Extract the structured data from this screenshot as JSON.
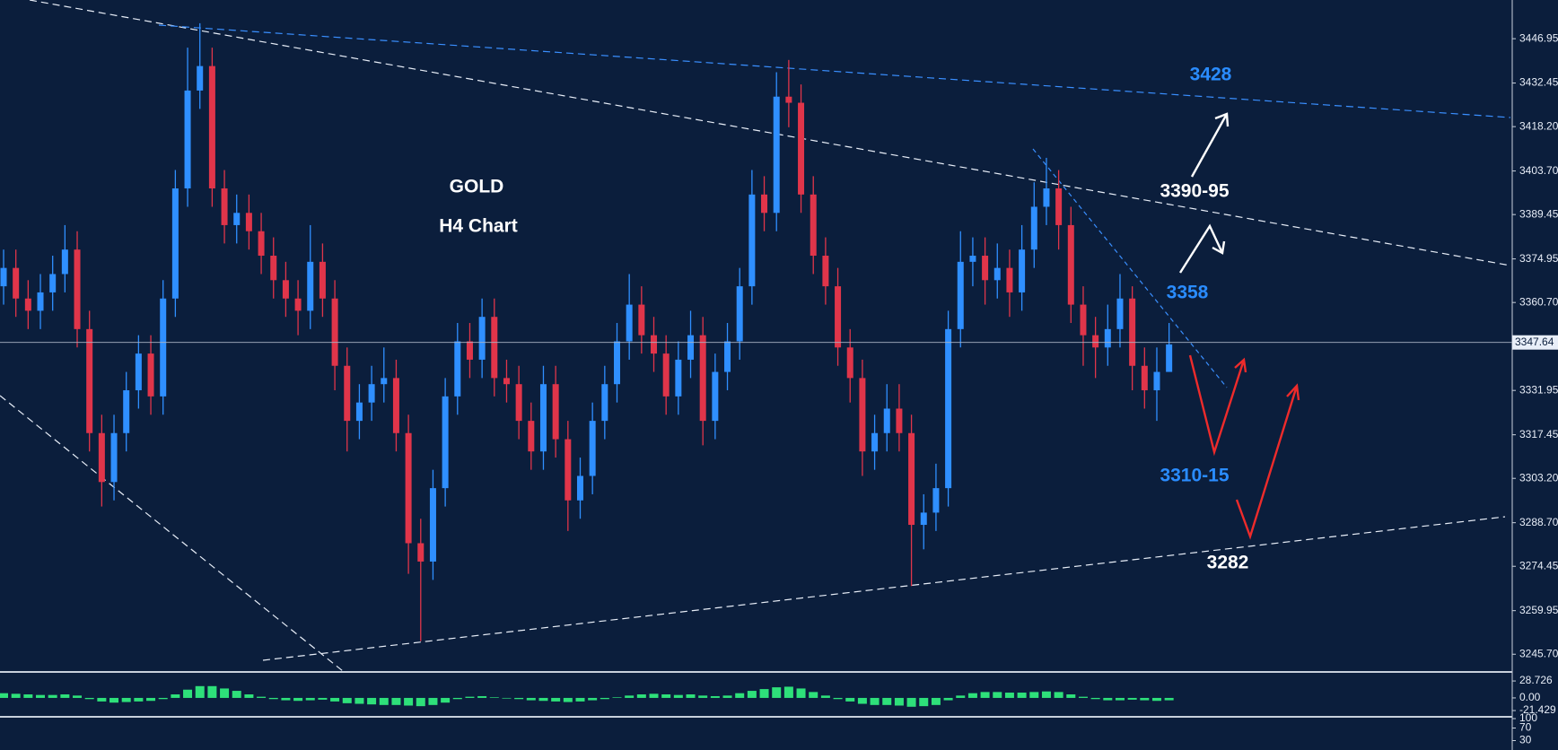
{
  "chart_data": [
    {
      "type": "candlestick",
      "title": "GOLD",
      "subtitle": "H4 Chart",
      "open": [
        3366,
        3372,
        3362,
        3358,
        3364,
        3370,
        3378,
        3352,
        3318,
        3302,
        3318,
        3332,
        3344,
        3330,
        3362,
        3398,
        3430,
        3438,
        3398,
        3386,
        3390,
        3384,
        3376,
        3368,
        3362,
        3358,
        3374,
        3362,
        3340,
        3322,
        3328,
        3334,
        3336,
        3318,
        3282,
        3276,
        3300,
        3330,
        3348,
        3342,
        3356,
        3336,
        3334,
        3322,
        3312,
        3334,
        3316,
        3296,
        3304,
        3322,
        3334,
        3348,
        3360,
        3350,
        3344,
        3330,
        3342,
        3350,
        3322,
        3338,
        3348,
        3366,
        3396,
        3390,
        3428,
        3426,
        3396,
        3376,
        3366,
        3346,
        3336,
        3312,
        3318,
        3326,
        3318,
        3288,
        3292,
        3300,
        3352,
        3374,
        3376,
        3368,
        3372,
        3364,
        3378,
        3392,
        3398,
        3386,
        3360,
        3350,
        3346,
        3352,
        3362,
        3340,
        3332,
        3338
      ],
      "high": [
        3378,
        3378,
        3368,
        3370,
        3376,
        3386,
        3384,
        3358,
        3324,
        3324,
        3338,
        3350,
        3350,
        3368,
        3404,
        3444,
        3452,
        3444,
        3404,
        3396,
        3396,
        3390,
        3382,
        3374,
        3368,
        3386,
        3380,
        3368,
        3346,
        3334,
        3340,
        3346,
        3342,
        3324,
        3290,
        3306,
        3336,
        3354,
        3354,
        3362,
        3362,
        3342,
        3340,
        3328,
        3340,
        3340,
        3322,
        3310,
        3328,
        3340,
        3354,
        3370,
        3366,
        3356,
        3350,
        3348,
        3358,
        3356,
        3344,
        3354,
        3372,
        3404,
        3402,
        3436,
        3440,
        3432,
        3402,
        3382,
        3372,
        3352,
        3342,
        3324,
        3334,
        3334,
        3324,
        3298,
        3308,
        3358,
        3384,
        3382,
        3382,
        3380,
        3378,
        3386,
        3400,
        3408,
        3404,
        3392,
        3366,
        3356,
        3360,
        3370,
        3366,
        3346,
        3346,
        3354
      ],
      "low": [
        3360,
        3356,
        3352,
        3352,
        3358,
        3364,
        3346,
        3312,
        3294,
        3296,
        3312,
        3326,
        3324,
        3324,
        3356,
        3392,
        3424,
        3392,
        3380,
        3380,
        3378,
        3370,
        3362,
        3356,
        3350,
        3352,
        3356,
        3332,
        3312,
        3316,
        3322,
        3328,
        3312,
        3272,
        3250,
        3270,
        3294,
        3324,
        3336,
        3336,
        3330,
        3328,
        3316,
        3306,
        3306,
        3310,
        3286,
        3290,
        3298,
        3316,
        3328,
        3342,
        3344,
        3338,
        3324,
        3324,
        3336,
        3314,
        3316,
        3332,
        3342,
        3360,
        3384,
        3384,
        3418,
        3390,
        3370,
        3360,
        3340,
        3328,
        3304,
        3306,
        3312,
        3312,
        3268,
        3280,
        3286,
        3294,
        3346,
        3366,
        3360,
        3362,
        3356,
        3358,
        3372,
        3386,
        3378,
        3354,
        3340,
        3336,
        3340,
        3346,
        3332,
        3326,
        3322,
        3340
      ],
      "close": [
        3372,
        3362,
        3358,
        3364,
        3370,
        3378,
        3352,
        3318,
        3302,
        3318,
        3332,
        3344,
        3330,
        3362,
        3398,
        3430,
        3438,
        3398,
        3386,
        3390,
        3384,
        3376,
        3368,
        3362,
        3358,
        3374,
        3362,
        3340,
        3322,
        3328,
        3334,
        3336,
        3318,
        3282,
        3276,
        3300,
        3330,
        3348,
        3342,
        3356,
        3336,
        3334,
        3322,
        3312,
        3334,
        3316,
        3296,
        3304,
        3322,
        3334,
        3348,
        3360,
        3350,
        3344,
        3330,
        3342,
        3350,
        3322,
        3338,
        3348,
        3366,
        3396,
        3390,
        3428,
        3426,
        3396,
        3376,
        3366,
        3346,
        3336,
        3312,
        3318,
        3326,
        3318,
        3288,
        3292,
        3300,
        3352,
        3374,
        3376,
        3368,
        3372,
        3364,
        3378,
        3392,
        3398,
        3386,
        3360,
        3350,
        3346,
        3352,
        3362,
        3340,
        3332,
        3338,
        3347
      ],
      "up_color": "#2f8fff",
      "down_color": "#e0354a",
      "last_price": 3347.64,
      "ylim": [
        3240.2,
        3459.6
      ],
      "yticks": [
        3446.95,
        3432.45,
        {
          "value": 3418.2,
          "label": "3418.20"
        },
        {
          "value": 3403.7,
          "label": "3403.70"
        },
        3389.45,
        3374.95,
        {
          "value": 3360.7,
          "label": "3360.70"
        },
        3331.95,
        3317.45,
        {
          "value": 3303.2,
          "label": "3303.20"
        },
        {
          "value": 3288.7,
          "label": "3288.70"
        },
        3274.45,
        3259.95,
        {
          "value": 3245.7,
          "label": "3245.70"
        }
      ],
      "annotations": [
        "3428",
        "3390-95",
        "3358",
        "3310-15",
        "3282"
      ]
    },
    {
      "type": "bar",
      "color": "#2ee07a",
      "values": [
        8,
        7,
        6,
        5,
        5,
        6,
        4,
        -2,
        -6,
        -8,
        -7,
        -6,
        -5,
        -2,
        6,
        14,
        20,
        20,
        16,
        12,
        6,
        2,
        -2,
        -4,
        -5,
        -4,
        -3,
        -6,
        -9,
        -10,
        -11,
        -12,
        -12,
        -13,
        -14,
        -12,
        -8,
        -2,
        2,
        3,
        1,
        -1,
        -2,
        -4,
        -5,
        -6,
        -7,
        -6,
        -4,
        -2,
        1,
        4,
        6,
        7,
        6,
        5,
        6,
        4,
        3,
        4,
        8,
        12,
        15,
        18,
        19,
        16,
        10,
        4,
        -2,
        -6,
        -10,
        -12,
        -12,
        -13,
        -15,
        -14,
        -12,
        -4,
        4,
        8,
        10,
        10,
        9,
        9,
        10,
        11,
        10,
        6,
        2,
        -2,
        -4,
        -4,
        -3,
        -4,
        -5,
        -4
      ],
      "ylim": [
        -29,
        41
      ],
      "yticks": [
        28.726,
        {
          "value": 0,
          "label": "0.00"
        },
        -21.429
      ]
    },
    {
      "type": "line",
      "ylim": [
        0,
        100
      ],
      "yticks": [
        100,
        70,
        30
      ]
    }
  ]
}
